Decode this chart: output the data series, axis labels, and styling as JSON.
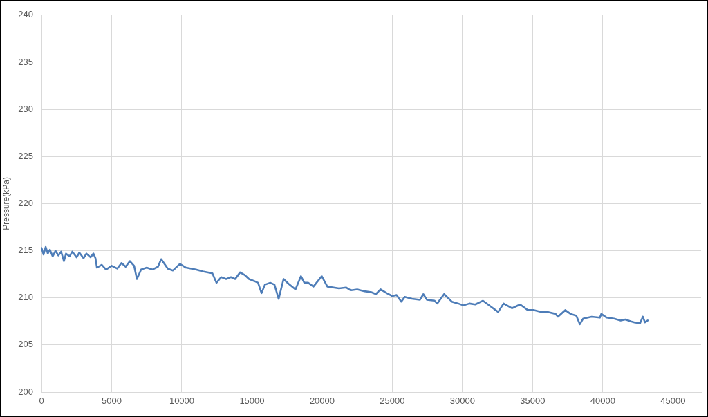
{
  "chart_data": {
    "type": "line",
    "ylabel": "Pressure(kPa)",
    "marker": "none",
    "grid": true,
    "xlim": [
      0,
      47000
    ],
    "xticks": [
      0,
      5000,
      10000,
      15000,
      20000,
      25000,
      30000,
      35000,
      40000,
      45000
    ],
    "ylim": [
      200,
      240
    ],
    "yticks": [
      200,
      205,
      210,
      215,
      220,
      225,
      230,
      235,
      240
    ],
    "series": [
      {
        "color": "#4e7db8",
        "x": [
          0,
          150,
          300,
          450,
          600,
          800,
          1000,
          1200,
          1400,
          1600,
          1750,
          2000,
          2200,
          2500,
          2700,
          3000,
          3200,
          3500,
          3700,
          3850,
          3950,
          4300,
          4600,
          5000,
          5400,
          5700,
          6000,
          6300,
          6600,
          6800,
          7100,
          7500,
          7900,
          8300,
          8530,
          9000,
          9370,
          9860,
          10300,
          11000,
          11500,
          12180,
          12470,
          12800,
          13160,
          13500,
          13800,
          14150,
          14500,
          14790,
          15130,
          15430,
          15680,
          15920,
          16300,
          16600,
          16900,
          17250,
          17600,
          18100,
          18490,
          18730,
          19000,
          19380,
          19970,
          20370,
          21200,
          21700,
          22040,
          22500,
          23020,
          23500,
          23830,
          24160,
          24600,
          25000,
          25300,
          25640,
          25880,
          26400,
          26970,
          27210,
          27460,
          28000,
          28200,
          28690,
          29240,
          29700,
          30070,
          30500,
          30910,
          31450,
          32000,
          32540,
          32930,
          33520,
          34110,
          34650,
          35100,
          35640,
          36100,
          36630,
          36800,
          37320,
          37700,
          38110,
          38360,
          38600,
          39200,
          39790,
          39890,
          40280,
          40800,
          41270,
          41600,
          42000,
          42260,
          42650,
          42850,
          43000,
          43200
        ],
        "values": [
          215.3,
          214.6,
          215.4,
          214.7,
          215.1,
          214.4,
          215.0,
          214.5,
          214.9,
          213.9,
          214.7,
          214.4,
          214.9,
          214.3,
          214.8,
          214.2,
          214.7,
          214.3,
          214.7,
          214.2,
          213.2,
          213.5,
          213.0,
          213.4,
          213.1,
          213.7,
          213.3,
          213.9,
          213.4,
          212.0,
          213.0,
          213.2,
          213.0,
          213.3,
          214.1,
          213.1,
          212.9,
          213.6,
          213.2,
          213.0,
          212.8,
          212.6,
          211.6,
          212.2,
          212.0,
          212.2,
          212.0,
          212.7,
          212.4,
          212.0,
          211.8,
          211.6,
          210.5,
          211.4,
          211.6,
          211.4,
          209.9,
          212.0,
          211.5,
          210.9,
          212.3,
          211.6,
          211.6,
          211.2,
          212.3,
          211.2,
          211.0,
          211.1,
          210.8,
          210.9,
          210.7,
          210.6,
          210.4,
          210.9,
          210.5,
          210.2,
          210.3,
          209.6,
          210.1,
          209.9,
          209.8,
          210.4,
          209.8,
          209.7,
          209.4,
          210.4,
          209.6,
          209.4,
          209.2,
          209.4,
          209.3,
          209.7,
          209.1,
          208.5,
          209.4,
          208.9,
          209.3,
          208.7,
          208.7,
          208.5,
          208.5,
          208.3,
          208.0,
          208.7,
          208.3,
          208.1,
          207.2,
          207.8,
          208.0,
          207.9,
          208.3,
          207.9,
          207.8,
          207.6,
          207.7,
          207.5,
          207.4,
          207.3,
          208.0,
          207.4,
          207.6
        ]
      }
    ]
  }
}
